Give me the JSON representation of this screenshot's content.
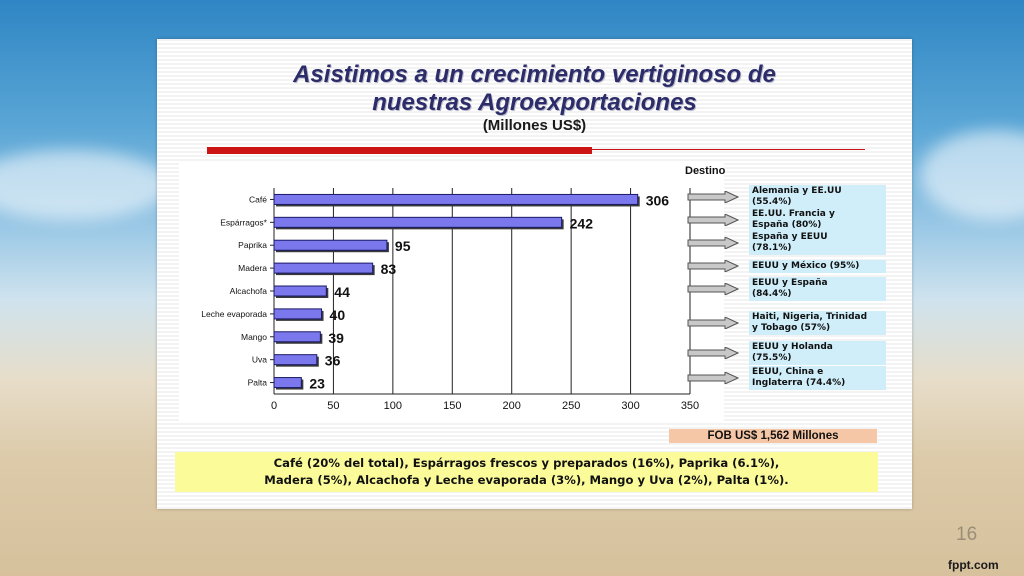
{
  "slide": {
    "title_line1": "Asistimos a un crecimiento vertiginoso de",
    "title_line2": "nuestras Agroexportaciones",
    "subtitle": "(Millones US$)",
    "destino_title": "Destino",
    "fob": "FOB US$ 1,562 Millones",
    "footnote_line1": "Café (20% del total), Espárragos frescos y preparados (16%), Paprika (6.1%),",
    "footnote_line2": "Madera (5%), Alcachofa y Leche evaporada (3%), Mango y Uva (2%), Palta (1%).",
    "page_number": "16",
    "brand": "fppt.com"
  },
  "destinations": [
    [
      "Alemania y EE.UU",
      "(55.4%)"
    ],
    [
      "EE.UU. Francia y",
      "España (80%)"
    ],
    [
      "España y EEUU",
      "(78.1%)"
    ],
    [
      "EEUU y México (95%)"
    ],
    [
      "EEUU y España",
      "(84.4%)"
    ],
    [
      "Haiti, Nigeria, Trinidad",
      "y Tobago (57%)"
    ],
    [
      "EEUU y Holanda",
      "(75.5%)"
    ],
    [
      "EEUU, China e",
      "Inglaterra (74.4%)"
    ]
  ],
  "colors": {
    "bar_fill": "#7b78ee",
    "bar_stroke": "#1a1a66",
    "title": "#2c2c6a",
    "accent_red": "#cc1414",
    "destination_box": "#cfeefa",
    "fob_box": "#f6c7a6",
    "footnote_box": "#fbfb9a"
  },
  "chart_data": {
    "type": "bar",
    "orientation": "horizontal",
    "categories": [
      "Café",
      "Espárragos*",
      "Paprika",
      "Madera",
      "Alcachofa",
      "Leche evaporada",
      "Mango",
      "Uva",
      "Palta"
    ],
    "values": [
      306,
      242,
      95,
      83,
      44,
      40,
      39,
      36,
      23
    ],
    "data_labels": [
      "306",
      "242",
      "95",
      "83",
      "44",
      "40",
      "39",
      "36",
      "23"
    ],
    "xlim": [
      0,
      350
    ],
    "x_ticks": [
      0,
      50,
      100,
      150,
      200,
      250,
      300,
      350
    ],
    "grid": "vertical",
    "title": "",
    "xlabel": "",
    "ylabel": ""
  }
}
